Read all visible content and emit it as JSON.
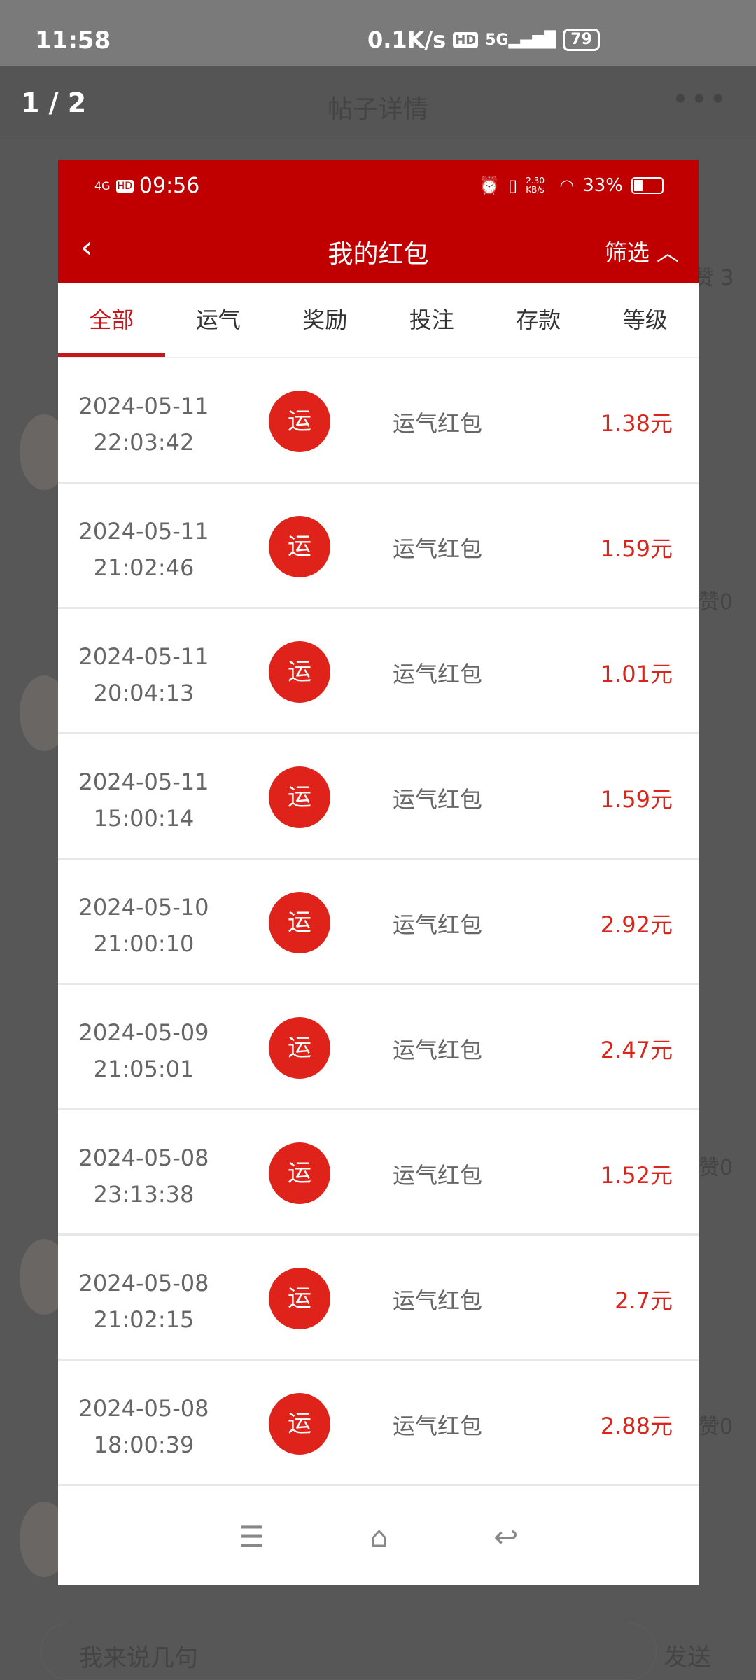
{
  "status_bar": {
    "time": "11:58",
    "net_speed": "0.1K/s",
    "hd": "HD",
    "network": "5G",
    "battery": "79"
  },
  "background": {
    "page_indicator": "1 / 2",
    "title": "帖子详情",
    "more": "•••",
    "likes_top": "赞 3",
    "likes": [
      "赞0",
      "赞0",
      "赞0"
    ],
    "comment_placeholder": "我来说几句",
    "send": "发送"
  },
  "modal": {
    "status": {
      "network": "4G",
      "hd": "HD",
      "time": "09:56",
      "speed": "2.30 KB/s",
      "battery": "33%"
    },
    "header": {
      "back": "‹",
      "title": "我的红包",
      "filter": "筛选 ︿"
    },
    "tabs": [
      {
        "label": "全部",
        "active": true
      },
      {
        "label": "运气"
      },
      {
        "label": "奖励"
      },
      {
        "label": "投注"
      },
      {
        "label": "存款"
      },
      {
        "label": "等级"
      }
    ],
    "records": [
      {
        "date": "2024-05-11",
        "time": "22:03:42",
        "badge": "运",
        "type": "运气红包",
        "amount": "1.38元"
      },
      {
        "date": "2024-05-11",
        "time": "21:02:46",
        "badge": "运",
        "type": "运气红包",
        "amount": "1.59元"
      },
      {
        "date": "2024-05-11",
        "time": "20:04:13",
        "badge": "运",
        "type": "运气红包",
        "amount": "1.01元"
      },
      {
        "date": "2024-05-11",
        "time": "15:00:14",
        "badge": "运",
        "type": "运气红包",
        "amount": "1.59元"
      },
      {
        "date": "2024-05-10",
        "time": "21:00:10",
        "badge": "运",
        "type": "运气红包",
        "amount": "2.92元"
      },
      {
        "date": "2024-05-09",
        "time": "21:05:01",
        "badge": "运",
        "type": "运气红包",
        "amount": "2.47元"
      },
      {
        "date": "2024-05-08",
        "time": "23:13:38",
        "badge": "运",
        "type": "运气红包",
        "amount": "1.52元"
      },
      {
        "date": "2024-05-08",
        "time": "21:02:15",
        "badge": "运",
        "type": "运气红包",
        "amount": "2.7元"
      },
      {
        "date": "2024-05-08",
        "time": "18:00:39",
        "badge": "运",
        "type": "运气红包",
        "amount": "2.88元"
      }
    ],
    "nav": {
      "menu": "☰",
      "home": "⌂",
      "back": "↩"
    }
  },
  "colors": {
    "brand_red": "#c00000",
    "amount_red": "#d9261c",
    "badge_red": "#e0231a"
  }
}
